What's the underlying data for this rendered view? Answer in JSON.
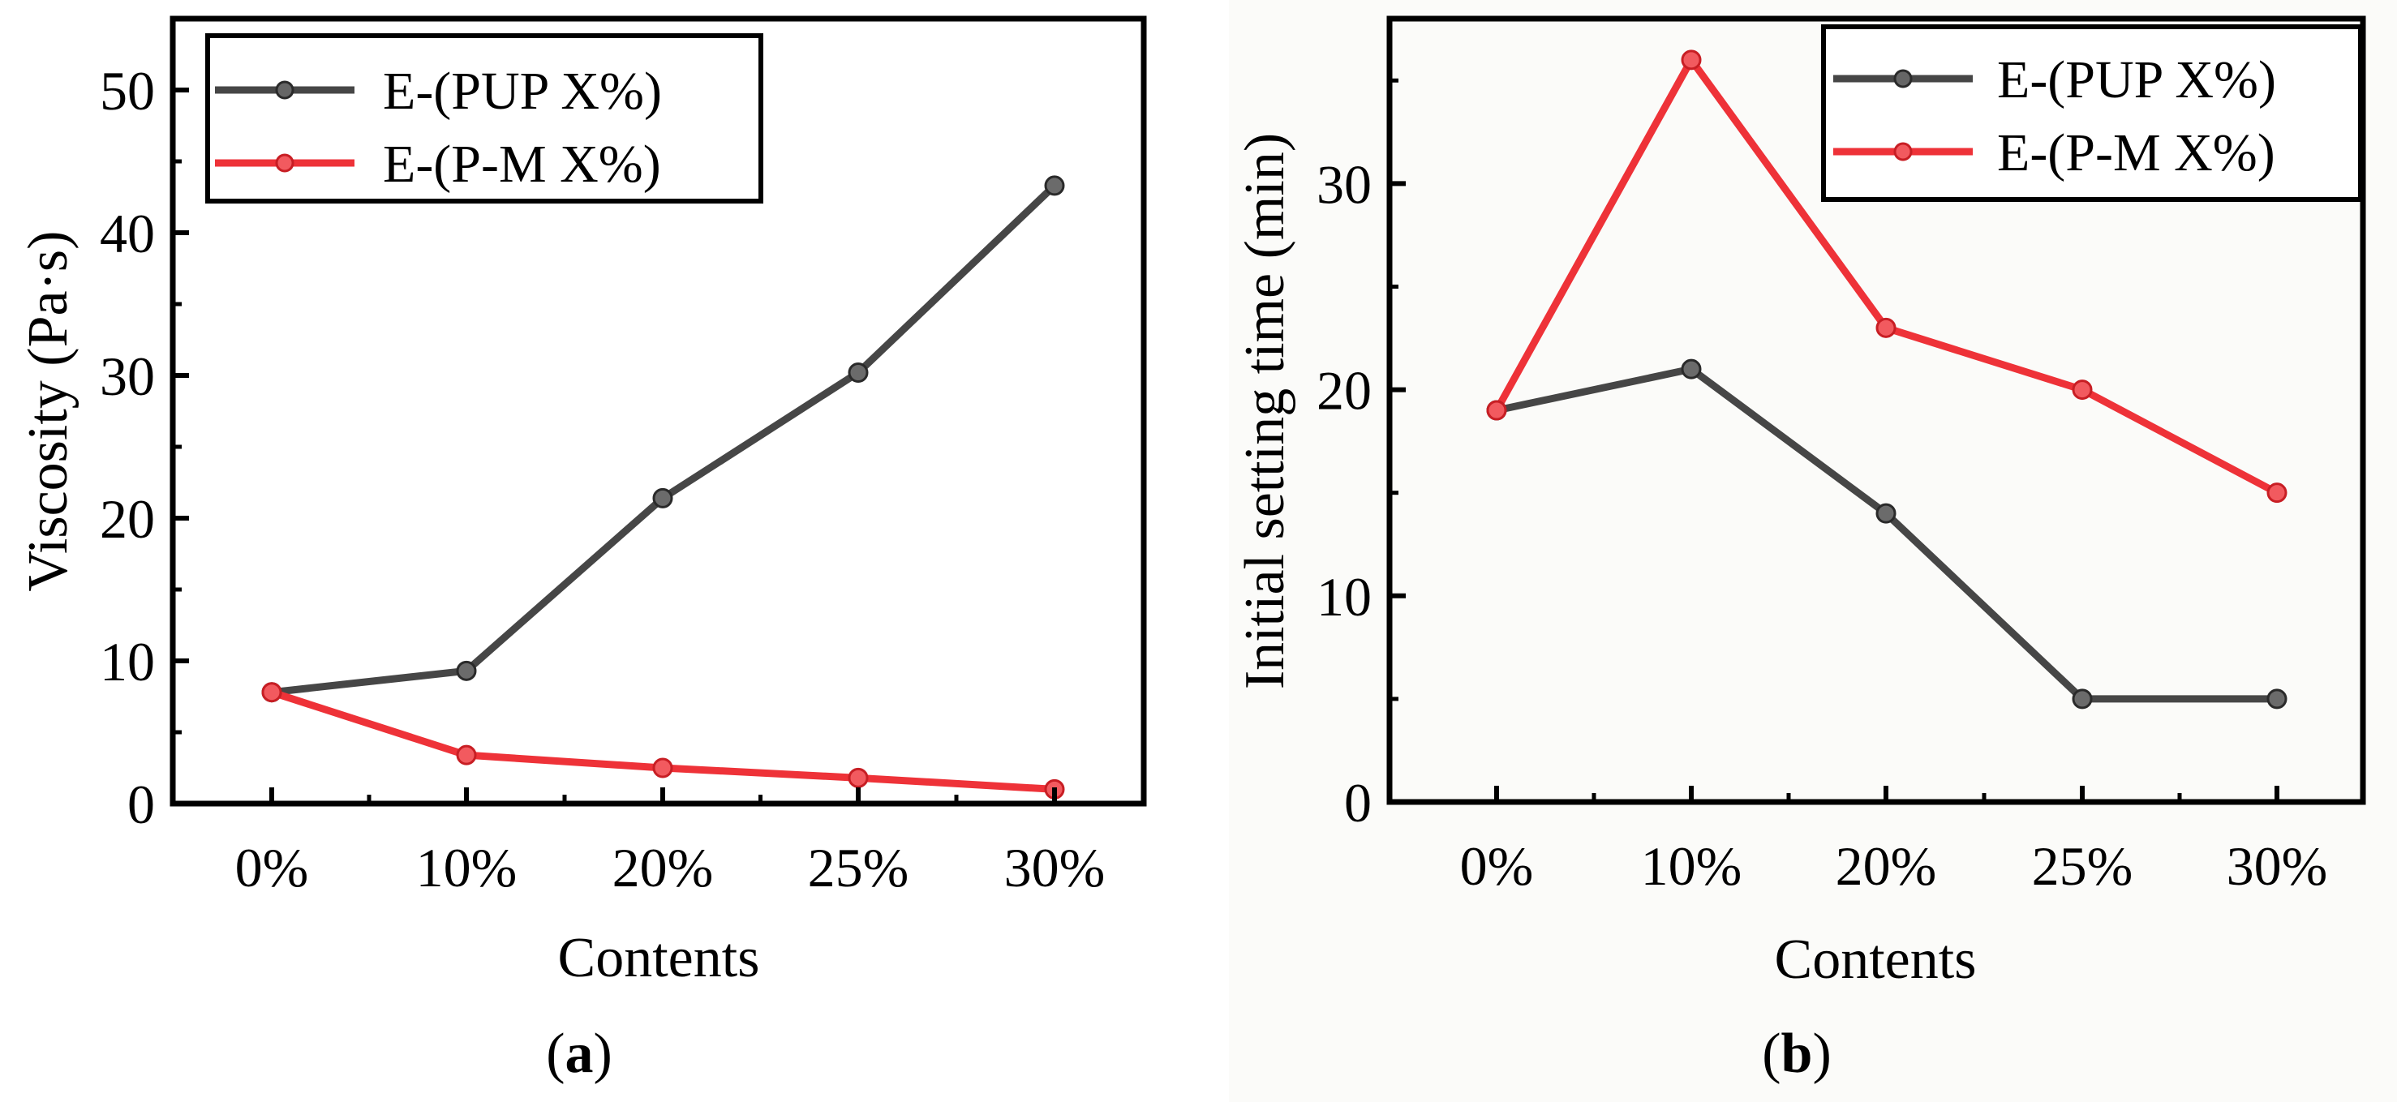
{
  "chart_data": [
    {
      "type": "line",
      "panel_label": "a",
      "title": "",
      "xlabel": "Contents",
      "ylabel": "Viscosity (Pa·s)",
      "categories": [
        "0%",
        "10%",
        "20%",
        "25%",
        "30%"
      ],
      "ylim": [
        0,
        55
      ],
      "yticks": [
        0,
        10,
        20,
        30,
        40,
        50
      ],
      "legend_position": "top-left",
      "grid": false,
      "series": [
        {
          "name": "E-(PUP X%)",
          "color": "#464646",
          "values": [
            7.8,
            9.3,
            21.4,
            30.2,
            43.3
          ]
        },
        {
          "name": "E-(P-M X%)",
          "color": "#ee3238",
          "values": [
            7.8,
            3.4,
            2.5,
            1.8,
            1.0
          ]
        }
      ]
    },
    {
      "type": "line",
      "panel_label": "b",
      "title": "",
      "xlabel": "Contents",
      "ylabel": "Initial setting time (min)",
      "categories": [
        "0%",
        "10%",
        "20%",
        "25%",
        "30%"
      ],
      "ylim": [
        0,
        38
      ],
      "yticks": [
        0,
        10,
        20,
        30
      ],
      "legend_position": "top-right",
      "grid": false,
      "series": [
        {
          "name": "E-(PUP X%)",
          "color": "#464646",
          "values": [
            19,
            21,
            14,
            5,
            5
          ]
        },
        {
          "name": "E-(P-M X%)",
          "color": "#ee3238",
          "values": [
            19,
            36,
            23,
            20,
            15
          ]
        }
      ]
    }
  ]
}
